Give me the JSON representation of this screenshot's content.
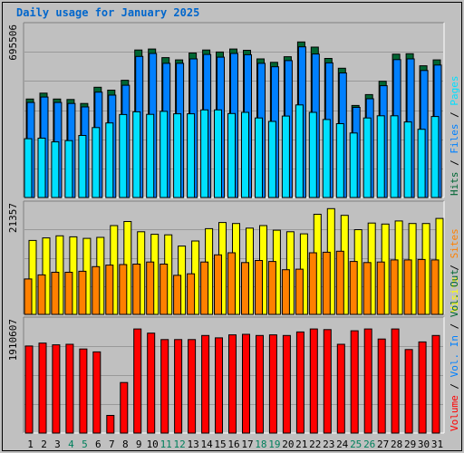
{
  "chart_data": {
    "type": "bar",
    "title": "Daily usage for January 2025",
    "categories": [
      "1",
      "2",
      "3",
      "4",
      "5",
      "6",
      "7",
      "8",
      "9",
      "10",
      "11",
      "12",
      "13",
      "14",
      "15",
      "16",
      "17",
      "18",
      "19",
      "20",
      "21",
      "22",
      "23",
      "24",
      "25",
      "26",
      "27",
      "28",
      "29",
      "30",
      "31"
    ],
    "weekend_days": [
      "4",
      "5",
      "11",
      "12",
      "18",
      "19",
      "25",
      "26"
    ],
    "panels": [
      {
        "name": "top",
        "ymax_label": "695506",
        "ylim": [
          0,
          695506
        ],
        "series": [
          {
            "name": "Hits",
            "color": "#006633",
            "values": [
              400000,
              424000,
              400000,
              398000,
              382000,
              448000,
              436000,
              476000,
              599000,
              603000,
              568000,
              559000,
              587000,
              599000,
              591000,
              603000,
              598000,
              563000,
              549000,
              572000,
              632000,
              611000,
              565000,
              525000,
              374000,
              418000,
              472000,
              582000,
              584000,
              535000,
              559000
            ]
          },
          {
            "name": "Files",
            "color": "#0080ff",
            "values": [
              386000,
              408000,
              386000,
              382000,
              368000,
              428000,
              416000,
              456000,
              573000,
              585000,
              545000,
              545000,
              563000,
              581000,
              570000,
              585000,
              580000,
              545000,
              531000,
              556000,
              612000,
              583000,
              547000,
              506000,
              366000,
              401000,
              454000,
              560000,
              563000,
              516000,
              538000
            ]
          },
          {
            "name": "Pages",
            "color": "#00e0ff",
            "values": [
              239000,
              241000,
              226000,
              231000,
              252000,
              284000,
              303000,
              337000,
              348000,
              338000,
              350000,
              340000,
              340000,
              356000,
              356000,
              341000,
              346000,
              323000,
              309000,
              331000,
              376000,
              346000,
              317000,
              300000,
              262000,
              323000,
              332000,
              332000,
              307000,
              277000,
              329000
            ]
          }
        ]
      },
      {
        "name": "middle",
        "ymax_label": "21357",
        "ylim": [
          0,
          21357
        ],
        "series": [
          {
            "name": "Visits",
            "color": "#ffff00",
            "values": [
              14400,
              14900,
              15300,
              15100,
              14800,
              15000,
              17300,
              18100,
              16100,
              15600,
              15500,
              13300,
              14300,
              16700,
              17900,
              17700,
              16800,
              17300,
              16400,
              16100,
              15700,
              19500,
              20600,
              19300,
              16500,
              17800,
              17600,
              18200,
              17700,
              17700,
              18700
            ]
          },
          {
            "name": "Sites",
            "color": "#ff8000",
            "values": [
              6900,
              7700,
              8200,
              8200,
              8400,
              9300,
              9600,
              9700,
              9800,
              10200,
              9800,
              7600,
              7900,
              10200,
              11600,
              12000,
              10100,
              10500,
              10300,
              8700,
              8800,
              12000,
              12100,
              12300,
              10300,
              10100,
              10200,
              10600,
              10600,
              10700,
              10600
            ]
          }
        ]
      },
      {
        "name": "bottom",
        "ymax_label": "1910607",
        "ylim": [
          0,
          1910607
        ],
        "series": [
          {
            "name": "Volume",
            "color": "#ff0000",
            "values": [
              1480000,
              1530000,
              1500000,
              1510000,
              1430000,
              1380000,
              300000,
              860000,
              1770000,
              1700000,
              1590000,
              1590000,
              1590000,
              1660000,
              1620000,
              1670000,
              1680000,
              1660000,
              1670000,
              1660000,
              1720000,
              1770000,
              1760000,
              1510000,
              1740000,
              1770000,
              1600000,
              1770000,
              1420000,
              1550000,
              1660000
            ]
          }
        ]
      }
    ],
    "right_legends": [
      [
        {
          "text": "Hits",
          "color": "#006633"
        },
        {
          "text": "Files",
          "color": "#0080ff"
        },
        {
          "text": "Pages",
          "color": "#00e0ff"
        }
      ],
      [
        {
          "text": "Visits",
          "color": "#ffff00"
        },
        {
          "text": "Sites",
          "color": "#ff8000"
        }
      ],
      [
        {
          "text": "Volume",
          "color": "#ff0000"
        },
        {
          "text": "Vol. In",
          "color": "#0080ff"
        },
        {
          "text": "Vol. Out",
          "color": "#006633"
        }
      ]
    ],
    "legend_separator": " / ",
    "grid": true
  }
}
